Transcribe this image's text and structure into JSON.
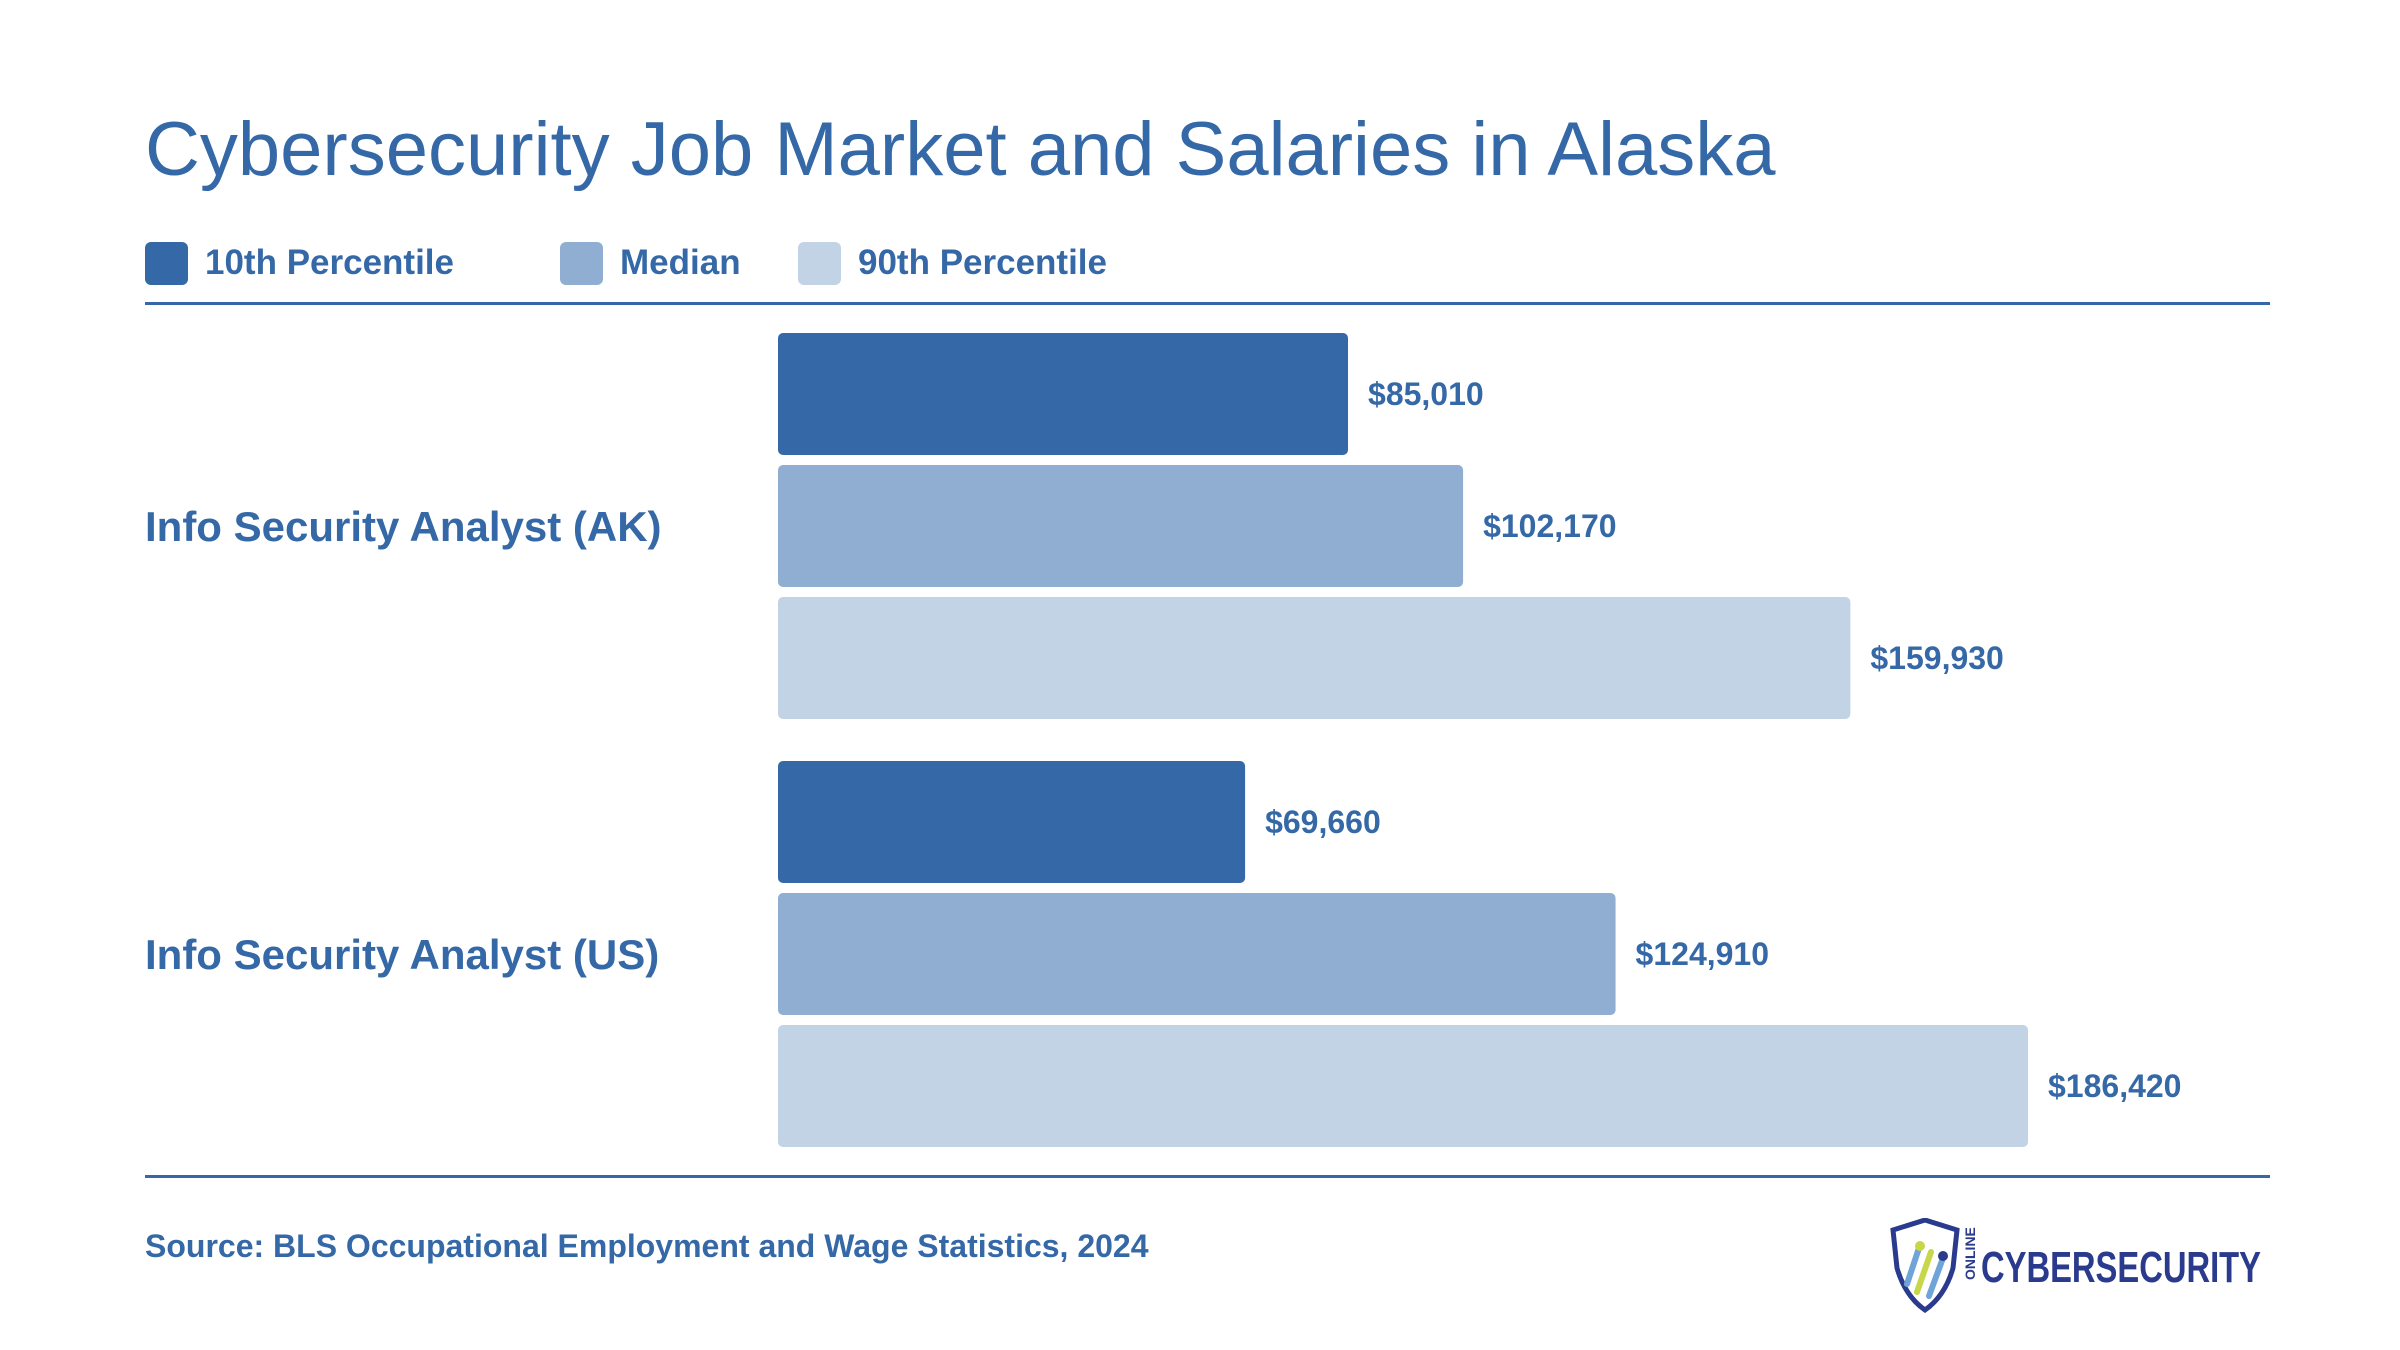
{
  "colors": {
    "text": "#3568a6",
    "p10": "#3568a6",
    "median": "#8faed1",
    "p90": "#c2d3e5"
  },
  "legend": [
    {
      "label": "10th Percentile",
      "color": "#3568a6"
    },
    {
      "label": "Median",
      "color": "#8faed1"
    },
    {
      "label": "90th Percentile",
      "color": "#c2d3e5"
    }
  ],
  "source": "Source: BLS Occupational Employment and Wage Statistics, 2024",
  "logo": {
    "small_text": "ONLINE",
    "brand_text": "CYBERSECURITY"
  },
  "chart_data": {
    "type": "bar",
    "orientation": "horizontal",
    "title": "Cybersecurity Job Market and Salaries in Alaska",
    "categories": [
      "Info Security Analyst (AK)",
      "Info Security Analyst (US)"
    ],
    "series": [
      {
        "name": "10th Percentile",
        "values": [
          85010,
          69660
        ],
        "labels": [
          "$85,010",
          "$69,660"
        ]
      },
      {
        "name": "Median",
        "values": [
          102170,
          124910
        ],
        "labels": [
          "$102,170",
          "$124,910"
        ]
      },
      {
        "name": "90th Percentile",
        "values": [
          159930,
          186420
        ],
        "labels": [
          "$159,930",
          "$186,420"
        ]
      }
    ],
    "xlim": [
      0,
      186420
    ],
    "grid": false,
    "legend_position": "top-left"
  }
}
